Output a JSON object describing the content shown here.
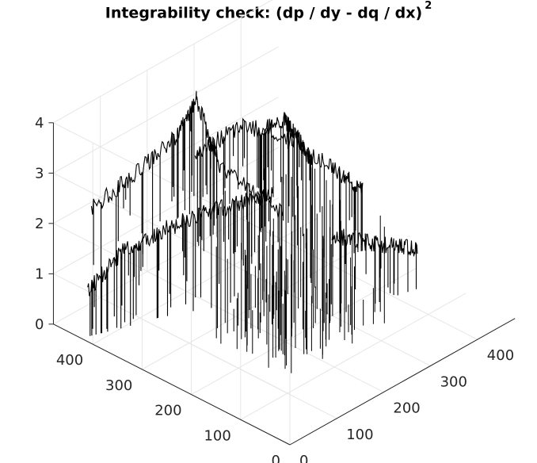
{
  "chart_data": {
    "type": "surface3d",
    "title": "Integrability check: (dp / dy - dq / dx)",
    "title_superscript": "2",
    "xlabel": "",
    "ylabel": "",
    "zlabel": "",
    "z_ticks": [
      "0",
      "1",
      "2",
      "3",
      "4"
    ],
    "x_ticks": [
      "0",
      "100",
      "200",
      "300",
      "400"
    ],
    "y_ticks": [
      "0",
      "100",
      "200",
      "300",
      "400"
    ],
    "zlim": [
      0,
      4
    ],
    "xlim": [
      0,
      480
    ],
    "ylim": [
      0,
      480
    ],
    "grid": true,
    "line_color": "#000000",
    "ridges": [
      {
        "name": "",
        "points": [
          [
            10,
            420,
            0.9
          ],
          [
            60,
            400,
            1.5
          ],
          [
            120,
            380,
            1.7
          ],
          [
            180,
            350,
            1.9
          ],
          [
            230,
            320,
            2.0
          ],
          [
            280,
            300,
            2.0
          ]
        ]
      },
      {
        "name": "",
        "points": [
          [
            60,
            460,
            2.1
          ],
          [
            120,
            430,
            2.6
          ],
          [
            180,
            400,
            3.2
          ],
          [
            205,
            385,
            3.9
          ],
          [
            230,
            360,
            2.5
          ],
          [
            300,
            300,
            1.5
          ]
        ]
      },
      {
        "name": "",
        "points": [
          [
            260,
            440,
            2.2
          ],
          [
            320,
            400,
            2.7
          ],
          [
            380,
            340,
            2.3
          ],
          [
            430,
            300,
            1.6
          ],
          [
            460,
            290,
            1.2
          ]
        ]
      },
      {
        "name": "",
        "points": [
          [
            250,
            300,
            3.4
          ],
          [
            280,
            280,
            3.6
          ],
          [
            300,
            270,
            3.2
          ],
          [
            320,
            260,
            2.6
          ]
        ]
      },
      {
        "name": "",
        "points": [
          [
            300,
            200,
            1.6
          ],
          [
            350,
            180,
            1.3
          ],
          [
            400,
            170,
            1.0
          ],
          [
            440,
            160,
            0.8
          ]
        ]
      }
    ]
  }
}
